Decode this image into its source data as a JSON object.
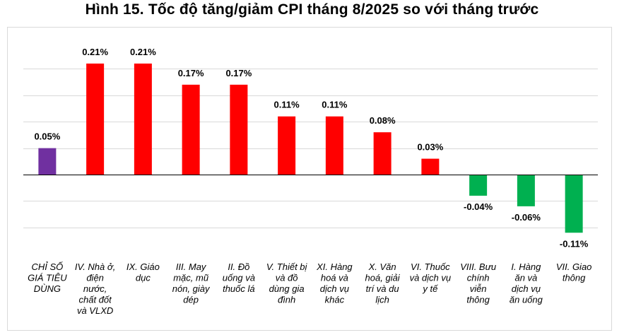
{
  "chart_data": {
    "type": "bar",
    "title": "Hình 15. Tốc độ tăng/giảm CPI tháng 8/2025 so với tháng trước",
    "xlabel": "",
    "ylabel": "",
    "ylim": [
      -0.12,
      0.24
    ],
    "grid": true,
    "unit": "%",
    "categories": [
      [
        "CHỈ SỐ",
        "GIÁ TIÊU",
        "DÙNG"
      ],
      [
        "IV. Nhà ở,",
        "điện",
        "nước,",
        "chất đốt",
        "và VLXD"
      ],
      [
        "IX. Giáo",
        "dục"
      ],
      [
        "III. May",
        "mặc, mũ",
        "nón, giày",
        "dép"
      ],
      [
        "II. Đồ",
        "uống và",
        "thuốc lá"
      ],
      [
        "V. Thiết bị",
        "và đồ",
        "dùng gia",
        "đình"
      ],
      [
        "XI. Hàng",
        "hoá và",
        "dịch vụ",
        "khác"
      ],
      [
        "X. Văn",
        "hoá, giải",
        "trí và du",
        "lịch"
      ],
      [
        "VI. Thuốc",
        "và dịch vụ",
        "y tế"
      ],
      [
        "VIII. Bưu",
        "chính",
        "viễn",
        "thông"
      ],
      [
        "I. Hàng",
        "ăn và",
        "dịch vụ",
        "ăn uống"
      ],
      [
        "VII. Giao",
        "thông"
      ]
    ],
    "values": [
      0.05,
      0.21,
      0.21,
      0.17,
      0.17,
      0.11,
      0.11,
      0.08,
      0.03,
      -0.04,
      -0.06,
      -0.11
    ],
    "value_labels": [
      "0.05%",
      "0.21%",
      "0.21%",
      "0.17%",
      "0.17%",
      "0.11%",
      "0.11%",
      "0.08%",
      "0.03%",
      "-0.04%",
      "-0.06%",
      "-0.11%"
    ],
    "colors": {
      "total": "#7030a0",
      "increase": "#ff0000",
      "decrease": "#00b050"
    }
  }
}
